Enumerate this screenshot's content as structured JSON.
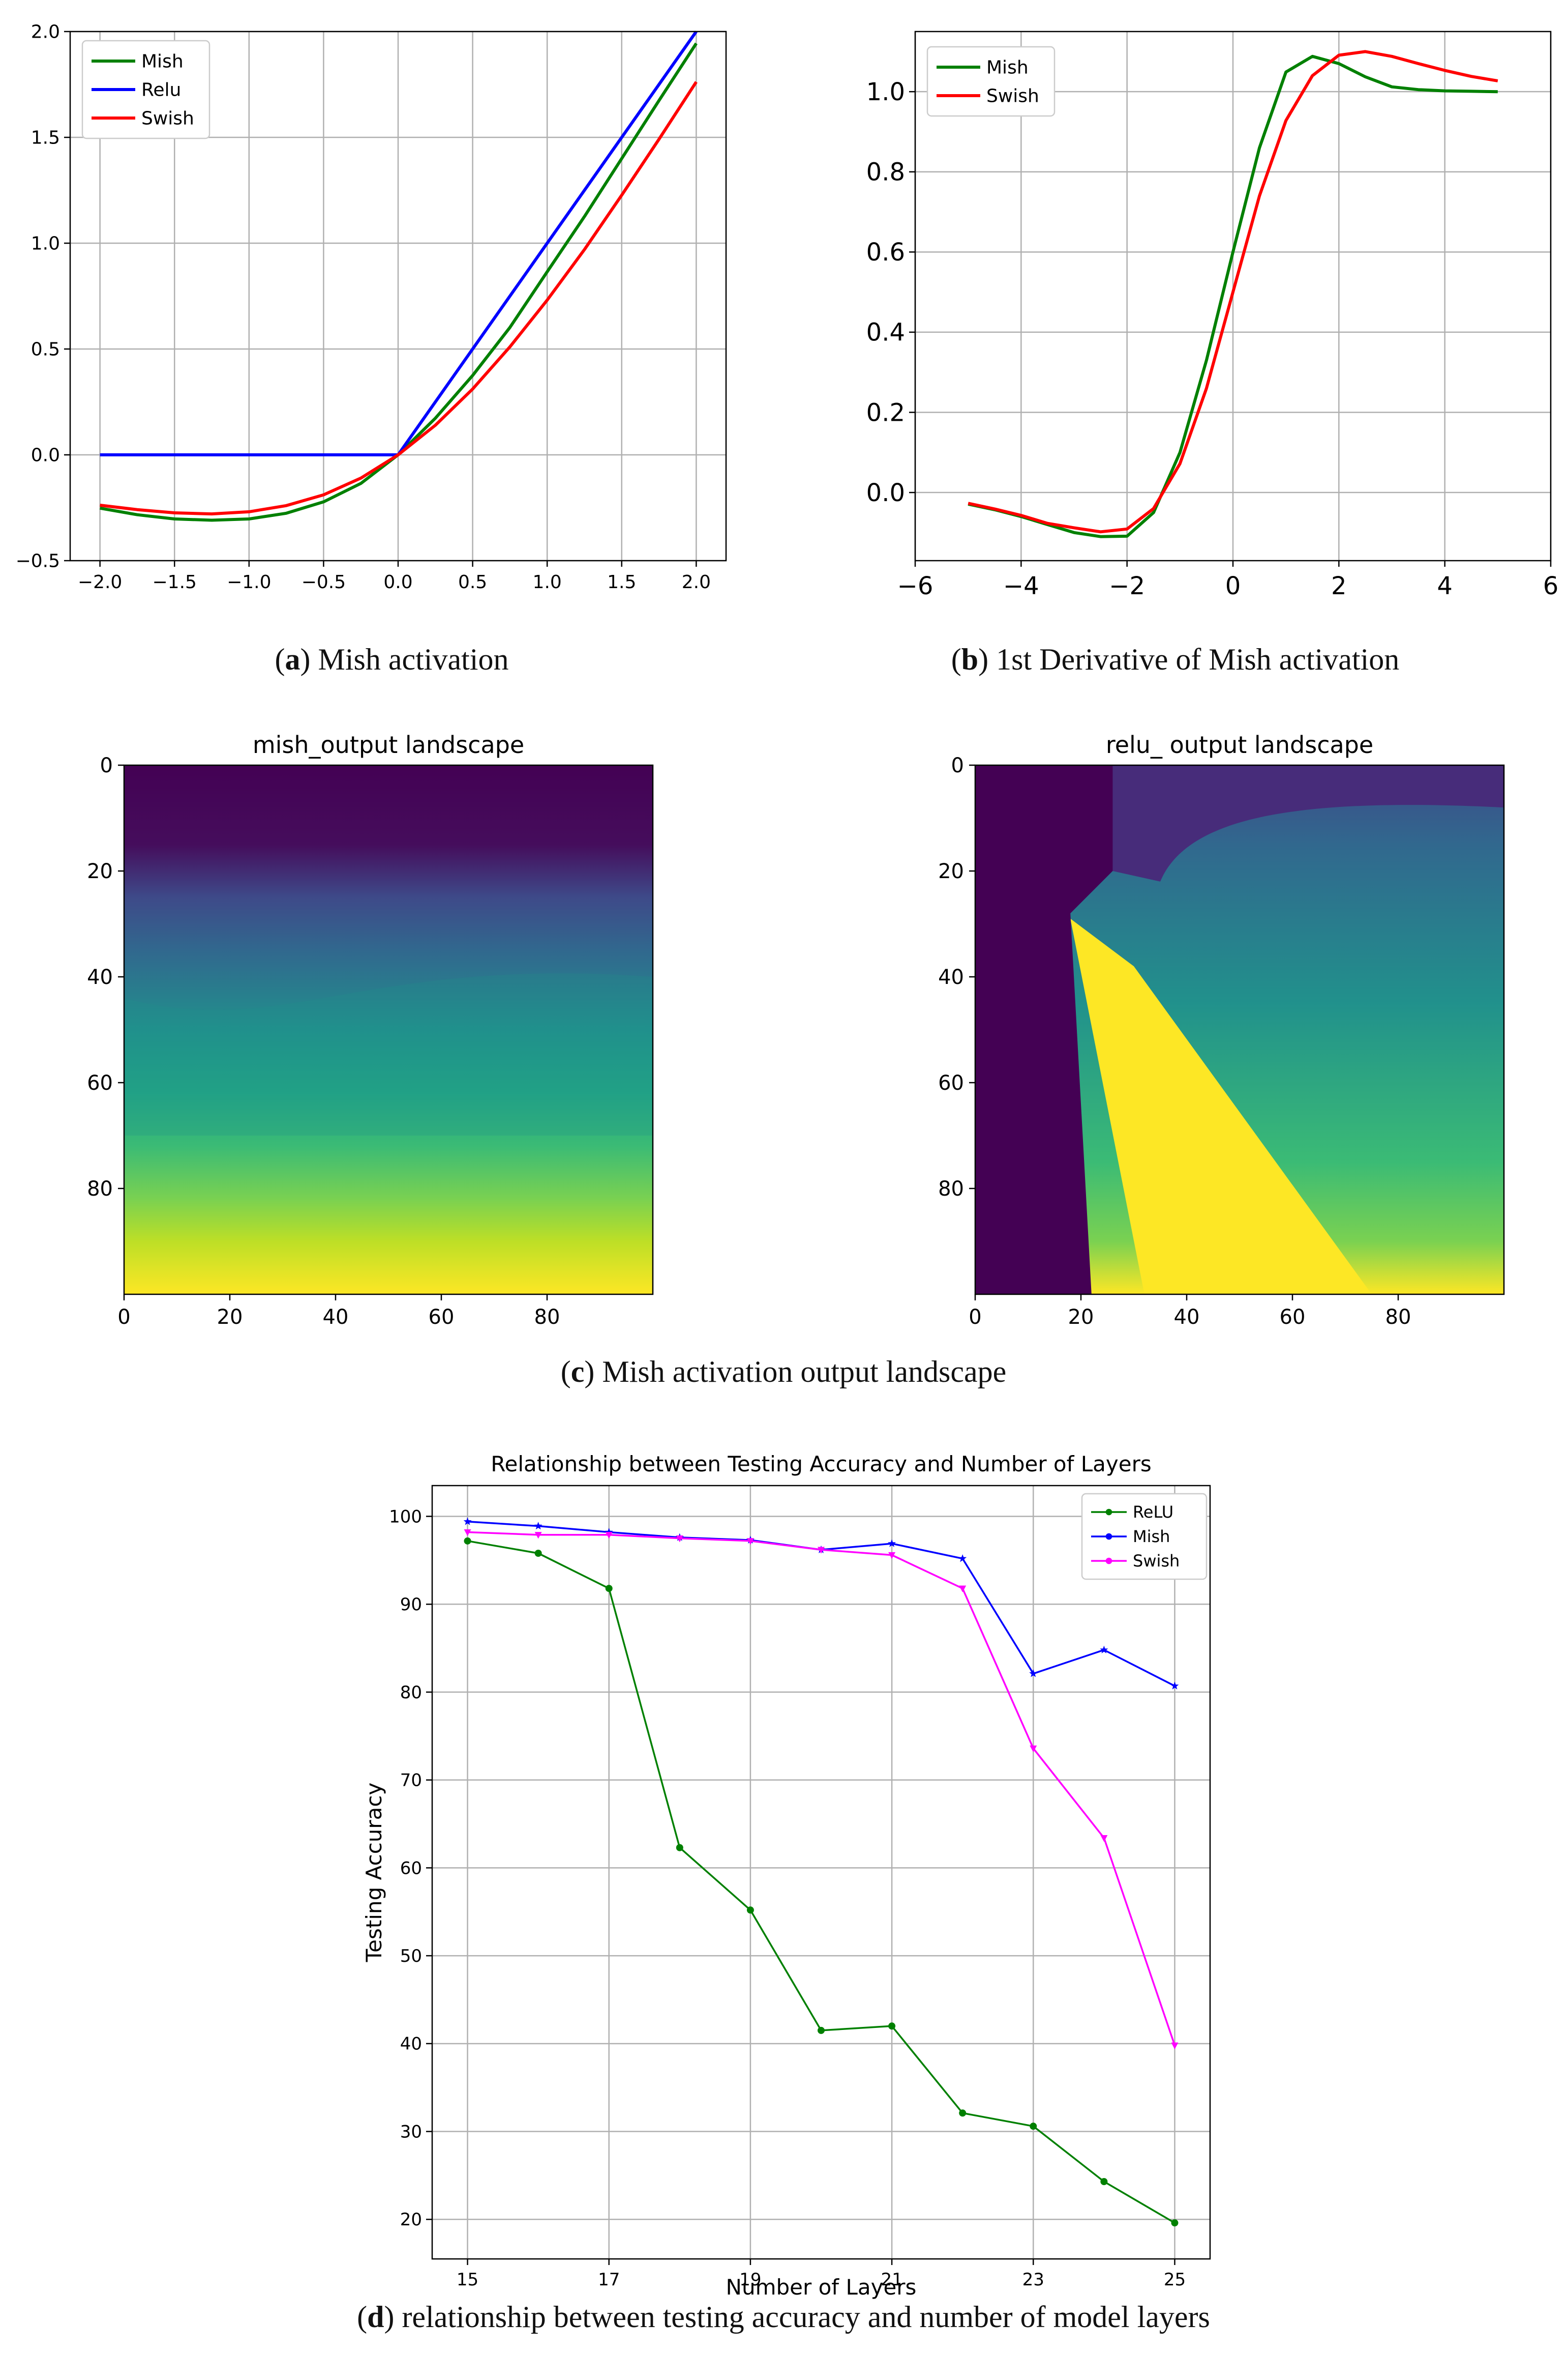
{
  "captions": {
    "a_letter": "a",
    "a_text": " Mish activation",
    "b_letter": "b",
    "b_text": " 1st Derivative of Mish activation",
    "c_letter": "c",
    "c_text": " Mish activation output landscape",
    "d_letter": "d",
    "d_text": " relationship between testing accuracy and number of model layers"
  },
  "chart_data": [
    {
      "id": "a",
      "type": "line",
      "title": "",
      "xlabel": "",
      "ylabel": "",
      "xlim": [
        -2.2,
        2.2
      ],
      "ylim": [
        -0.5,
        2.0
      ],
      "xticks": [
        -2.0,
        -1.5,
        -1.0,
        -0.5,
        0.0,
        0.5,
        1.0,
        1.5,
        2.0
      ],
      "xtick_labels": [
        "−2.0",
        "−1.5",
        "−1.0",
        "−0.5",
        "0.0",
        "0.5",
        "1.0",
        "1.5",
        "2.0"
      ],
      "yticks": [
        -0.5,
        0.0,
        0.5,
        1.0,
        1.5,
        2.0
      ],
      "ytick_labels": [
        "−0.5",
        "0.0",
        "0.5",
        "1.0",
        "1.5",
        "2.0"
      ],
      "grid": true,
      "legend": "top-left",
      "x": [
        -2.0,
        -1.75,
        -1.5,
        -1.25,
        -1.0,
        -0.75,
        -0.5,
        -0.25,
        0.0,
        0.25,
        0.5,
        0.75,
        1.0,
        1.25,
        1.5,
        1.75,
        2.0
      ],
      "series": [
        {
          "name": "Mish",
          "color": "#008000",
          "values": [
            -0.252,
            -0.283,
            -0.303,
            -0.309,
            -0.303,
            -0.276,
            -0.222,
            -0.135,
            0.0,
            0.173,
            0.375,
            0.602,
            0.865,
            1.126,
            1.4,
            1.674,
            1.944
          ]
        },
        {
          "name": "Relu",
          "color": "#0000ff",
          "values": [
            0,
            0,
            0,
            0,
            0,
            0,
            0,
            0,
            0,
            0.25,
            0.5,
            0.75,
            1.0,
            1.25,
            1.5,
            1.75,
            2.0
          ]
        },
        {
          "name": "Swish",
          "color": "#ff0000",
          "values": [
            -0.238,
            -0.259,
            -0.274,
            -0.279,
            -0.269,
            -0.24,
            -0.189,
            -0.11,
            0.0,
            0.14,
            0.311,
            0.51,
            0.731,
            0.97,
            1.227,
            1.491,
            1.762
          ]
        }
      ]
    },
    {
      "id": "b",
      "type": "line",
      "title": "",
      "xlabel": "",
      "ylabel": "",
      "xlim": [
        -6,
        6
      ],
      "ylim": [
        -0.17,
        1.15
      ],
      "xticks": [
        -6,
        -4,
        -2,
        0,
        2,
        4,
        6
      ],
      "xtick_labels": [
        "−6",
        "−4",
        "−2",
        "0",
        "2",
        "4",
        "6"
      ],
      "yticks": [
        0.0,
        0.2,
        0.4,
        0.6,
        0.8,
        1.0
      ],
      "ytick_labels": [
        "0.0",
        "0.2",
        "0.4",
        "0.6",
        "0.8",
        "1.0"
      ],
      "grid": true,
      "legend": "top-left",
      "x": [
        -5,
        -4.5,
        -4,
        -3.5,
        -3,
        -2.5,
        -2,
        -1.5,
        -1,
        -0.5,
        0,
        0.5,
        1,
        1.5,
        2,
        2.5,
        3,
        3.5,
        4,
        4.5,
        5
      ],
      "series": [
        {
          "name": "Mish",
          "color": "#008000",
          "values": [
            -0.029,
            -0.043,
            -0.06,
            -0.08,
            -0.1,
            -0.11,
            -0.109,
            -0.05,
            0.1,
            0.33,
            0.6,
            0.86,
            1.049,
            1.088,
            1.07,
            1.037,
            1.012,
            1.005,
            1.002,
            1.001,
            1.0
          ]
        },
        {
          "name": "Swish",
          "color": "#ff0000",
          "values": [
            -0.027,
            -0.041,
            -0.057,
            -0.077,
            -0.088,
            -0.098,
            -0.091,
            -0.04,
            0.072,
            0.26,
            0.5,
            0.74,
            0.928,
            1.04,
            1.091,
            1.1,
            1.088,
            1.07,
            1.053,
            1.038,
            1.027
          ]
        }
      ]
    },
    {
      "id": "c1",
      "type": "heatmap",
      "title": "mish_output landscape",
      "xticks": [
        0,
        20,
        40,
        60,
        80
      ],
      "yticks": [
        0,
        20,
        40,
        60,
        80
      ],
      "extent": [
        0,
        100
      ],
      "bands": [
        {
          "y": 0,
          "color": "#440154"
        },
        {
          "y": 15,
          "color": "#450d5c"
        },
        {
          "y": 25,
          "color": "#3e4a89"
        },
        {
          "y": 35,
          "color": "#31688e"
        },
        {
          "y": 50,
          "color": "#21918c"
        },
        {
          "y": 62,
          "color": "#22a784"
        },
        {
          "y": 72,
          "color": "#3bbb75"
        },
        {
          "y": 82,
          "color": "#7ad151"
        },
        {
          "y": 90,
          "color": "#bddf26"
        },
        {
          "y": 100,
          "color": "#fde725"
        }
      ]
    },
    {
      "id": "c2",
      "type": "heatmap",
      "title": "relu_ output landscape",
      "xticks": [
        0,
        20,
        40,
        60,
        80
      ],
      "yticks": [
        0,
        20,
        40,
        60,
        80
      ],
      "extent": [
        0,
        100
      ]
    },
    {
      "id": "d",
      "type": "line",
      "title": "Relationship between Testing Accuracy and Number of Layers",
      "xlabel": "Number of Layers",
      "ylabel": "Testing Accuracy",
      "xlim": [
        14.5,
        25.5
      ],
      "ylim": [
        15.5,
        103.5
      ],
      "xticks": [
        15,
        17,
        19,
        21,
        23,
        25
      ],
      "yticks": [
        20,
        30,
        40,
        50,
        60,
        70,
        80,
        90,
        100
      ],
      "grid": true,
      "legend": "top-right",
      "x": [
        15,
        16,
        17,
        18,
        19,
        20,
        21,
        22,
        23,
        24,
        25
      ],
      "series": [
        {
          "name": "ReLU",
          "color": "#008000",
          "marker": "circle",
          "values": [
            97.2,
            95.8,
            91.8,
            62.3,
            55.2,
            41.5,
            42.0,
            32.1,
            30.6,
            24.3,
            19.6
          ]
        },
        {
          "name": "Mish",
          "color": "#0000ff",
          "marker": "star",
          "values": [
            99.4,
            98.9,
            98.2,
            97.6,
            97.3,
            96.2,
            96.9,
            95.2,
            82.1,
            84.8,
            80.7
          ]
        },
        {
          "name": "Swish",
          "color": "#ff00ff",
          "marker": "triangle_down",
          "values": [
            98.2,
            97.9,
            97.9,
            97.5,
            97.2,
            96.2,
            95.6,
            91.8,
            73.6,
            63.4,
            39.8
          ]
        }
      ]
    }
  ]
}
